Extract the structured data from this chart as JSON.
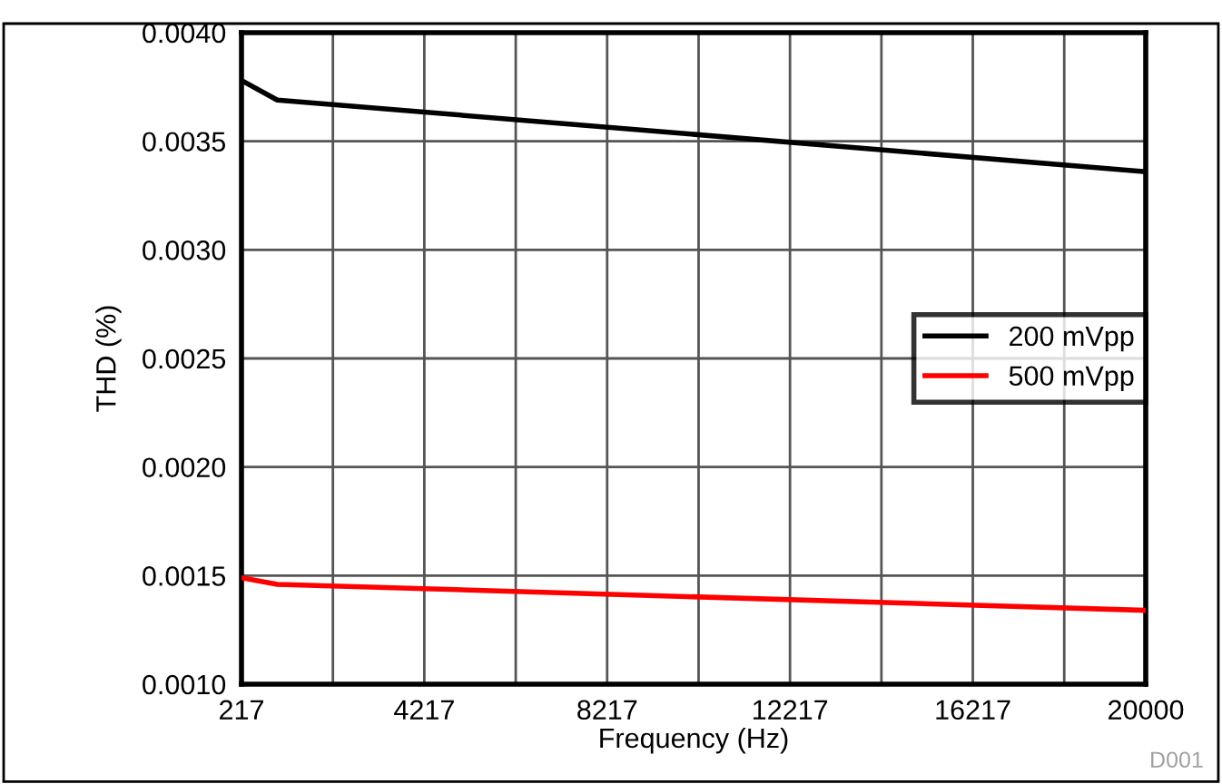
{
  "chart_data": {
    "type": "line",
    "xlabel": "Frequency (Hz)",
    "ylabel": "THD (%)",
    "x": [
      217,
      1000,
      20000
    ],
    "series": [
      {
        "name": "200 mVpp",
        "color": "#000000",
        "values": [
          0.00378,
          0.00369,
          0.00336
        ]
      },
      {
        "name": "500 mVpp",
        "color": "#ff0000",
        "values": [
          0.00149,
          0.00146,
          0.00134
        ]
      }
    ],
    "xlim": [
      217,
      20000
    ],
    "xticks": [
      217,
      {
        "value": 2217,
        "label": null
      },
      4217,
      {
        "value": 6217,
        "label": null
      },
      8217,
      {
        "value": 10217,
        "label": null
      },
      12217,
      {
        "value": 14217,
        "label": null
      },
      16217,
      {
        "value": 18217,
        "label": null
      },
      20000
    ],
    "ylim": [
      0.001,
      0.004
    ],
    "yticks": [
      {
        "value": 0.001,
        "label": "0.0010"
      },
      {
        "value": 0.0015,
        "label": "0.0015"
      },
      {
        "value": 0.002,
        "label": "0.0020"
      },
      {
        "value": 0.0025,
        "label": "0.0025"
      },
      {
        "value": 0.003,
        "label": "0.0030"
      },
      {
        "value": 0.0035,
        "label": "0.0035"
      },
      {
        "value": 0.004,
        "label": "0.0040"
      }
    ],
    "grid": true,
    "legend": "right",
    "marker": "none",
    "line_style": "solid",
    "annotations": [
      "D001"
    ]
  }
}
